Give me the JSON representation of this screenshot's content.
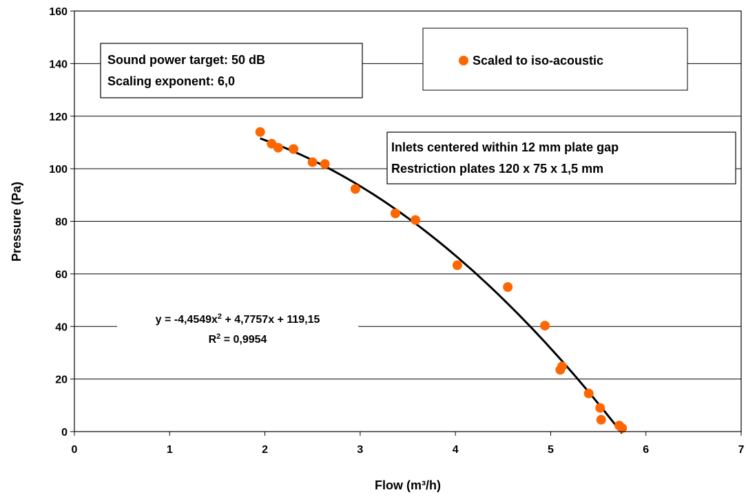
{
  "chart_data": {
    "type": "scatter",
    "xlabel": "Flow (m³/h)",
    "ylabel": "Pressure (Pa)",
    "xlim": [
      0,
      7
    ],
    "ylim": [
      0,
      160
    ],
    "x_ticks": [
      "0",
      "1",
      "2",
      "3",
      "4",
      "5",
      "6",
      "7"
    ],
    "y_ticks": [
      "0",
      "20",
      "40",
      "60",
      "80",
      "100",
      "120",
      "140",
      "160"
    ],
    "grid": "horizontal",
    "legend": {
      "position": "top-right",
      "label": "Scaled to iso-acoustic"
    },
    "colors": {
      "points": "#ff6600",
      "fit": "#000000"
    },
    "series": [
      {
        "name": "Scaled to iso-acoustic",
        "points": [
          [
            1.95,
            114.0
          ],
          [
            2.07,
            109.5
          ],
          [
            2.14,
            108.0
          ],
          [
            2.3,
            107.5
          ],
          [
            2.5,
            102.5
          ],
          [
            2.63,
            101.8
          ],
          [
            2.95,
            92.3
          ],
          [
            3.37,
            83.0
          ],
          [
            3.58,
            80.5
          ],
          [
            4.02,
            63.3
          ],
          [
            4.55,
            55.0
          ],
          [
            4.94,
            40.3
          ],
          [
            5.1,
            23.5
          ],
          [
            5.12,
            24.8
          ],
          [
            5.4,
            14.5
          ],
          [
            5.52,
            9.0
          ],
          [
            5.53,
            4.5
          ],
          [
            5.72,
            2.3
          ],
          [
            5.75,
            1.3
          ]
        ]
      }
    ],
    "trendline": {
      "type": "polynomial",
      "coefficients": [
        -4.4549,
        4.7757,
        119.15
      ],
      "x_range": [
        1.95,
        5.75
      ],
      "equation_prefix": "y = -4,4549x",
      "equation_suffix": " + 4,7757x + 119,15",
      "r2_prefix": "R",
      "r2_suffix": " = 0,9954",
      "superscript": "2"
    },
    "annotations": {
      "target_line1": "Sound power target: 50 dB",
      "target_line2": "Scaling exponent: 6,0",
      "setup_line1": "Inlets centered within 12 mm plate gap",
      "setup_line2": "Restriction plates 120 x 75 x 1,5 mm"
    }
  }
}
